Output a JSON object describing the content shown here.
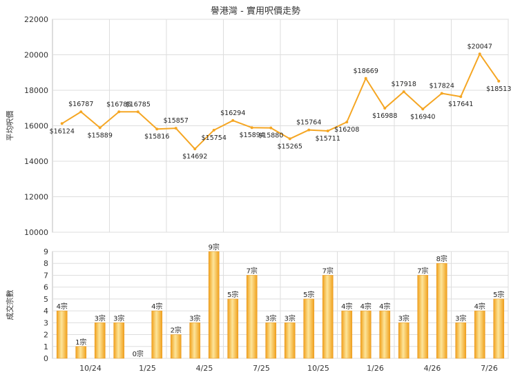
{
  "chart_data": [
    {
      "type": "line",
      "title": "譽港灣 - 實用呎價走勢",
      "ylabel": "平均呎價",
      "ylim": [
        10000,
        22000
      ],
      "yticks": [
        10000,
        12000,
        14000,
        16000,
        18000,
        20000,
        22000
      ],
      "grid": true,
      "color": "#f5a623",
      "series": [
        {
          "values": [
            16124,
            16787,
            15889,
            16785,
            16785,
            15816,
            15857,
            14692,
            15754,
            16294,
            15894,
            15880,
            15265,
            15764,
            15711,
            16208,
            18669,
            16988,
            17918,
            16940,
            17824,
            17641,
            20047,
            18513
          ],
          "labels": [
            "$16124",
            "$16787",
            "$15889",
            "$16785",
            "$16785",
            "$15816",
            "$15857",
            "$14692",
            "$15754",
            "$16294",
            "$15894",
            "$15880",
            "$15265",
            "$15764",
            "$15711",
            "$16208",
            "$18669",
            "$16988",
            "$17918",
            "$16940",
            "$17824",
            "$17641",
            "$20047",
            "$18513"
          ]
        }
      ]
    },
    {
      "type": "bar",
      "ylabel": "成交宗數",
      "ylim": [
        0,
        9
      ],
      "yticks": [
        0,
        1,
        2,
        3,
        4,
        5,
        6,
        7,
        8,
        9
      ],
      "grid": true,
      "color": "#f5a623",
      "values": [
        4,
        1,
        3,
        3,
        0,
        4,
        2,
        3,
        9,
        5,
        7,
        3,
        3,
        5,
        7,
        4,
        4,
        4,
        3,
        7,
        8,
        3,
        4,
        5
      ],
      "labels": [
        "4宗",
        "1宗",
        "3宗",
        "3宗",
        "0宗",
        "4宗",
        "2宗",
        "3宗",
        "9宗",
        "5宗",
        "7宗",
        "3宗",
        "3宗",
        "5宗",
        "7宗",
        "4宗",
        "4宗",
        "4宗",
        "3宗",
        "7宗",
        "8宗",
        "3宗",
        "4宗",
        "5宗"
      ],
      "xticks": [
        "10/24",
        "1/25",
        "4/25",
        "7/25",
        "10/25",
        "1/26",
        "4/26",
        "7/26"
      ]
    }
  ]
}
